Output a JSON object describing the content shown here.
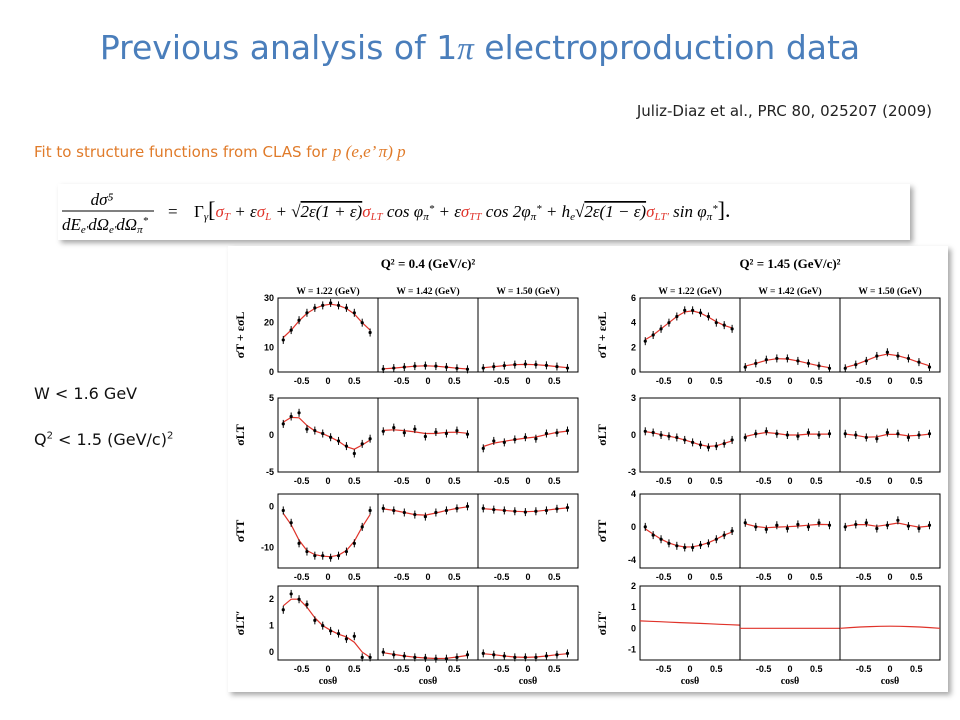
{
  "slide": {
    "title_pre": "Previous analysis of 1",
    "title_pi": "π",
    "title_post": " electroproduction data",
    "citation": "Juliz-Diaz et al., PRC 80, 025207 (2009)",
    "fit_text": "Fit to structure functions from CLAS for",
    "fit_process": "p (e,e’ π) p",
    "cut_w": "W < 1.6 GeV",
    "cut_q2_pre": "Q",
    "cut_q2_sup": "2",
    "cut_q2_mid": " < 1.5 (GeV/c)",
    "cut_q2_sup2": "2"
  },
  "formula": {
    "lhs_num": "dσ⁵",
    "lhs_den": "dE",
    "lhs_den_sub1": "e′",
    "lhs_den_mid": "dΩ",
    "lhs_den_sub2": "e′",
    "lhs_den_end": "dΩ",
    "lhs_den_sub3": "π",
    "lhs_den_star": "*",
    "eq": "=",
    "gamma": "Γ",
    "gamma_sub": "γ",
    "bracket_open": "[",
    "sigma_T": "σ",
    "sigma_T_sub": "T",
    "plus1": " + ε",
    "sigma_L": "σ",
    "sigma_L_sub": "L",
    "plus2": " + ",
    "sqrt1": "√",
    "sqrt1_body": "2ε(1 + ε)",
    "sigma_LT": "σ",
    "sigma_LT_sub": "LT",
    "cos1": " cos φ",
    "phi_sub": "π",
    "phi_star": "*",
    "plus3": " + ε",
    "sigma_TT": "σ",
    "sigma_TT_sub": "TT",
    "cos2": " cos 2φ",
    "plus4": " + h",
    "h_sub": "e",
    "sqrt2": "√",
    "sqrt2_body": "2ε(1 − ε)",
    "sigma_LTp": "σ",
    "sigma_LTp_sub": "LT′",
    "sin": " sin φ",
    "bracket_close": "].",
    "sigma_color": "#e0332a"
  },
  "figure": {
    "group_titles": [
      "Q² = 0.4 (GeV/c)²",
      "Q² = 1.45 (GeV/c)²"
    ],
    "w_labels": [
      "W = 1.22 (GeV)",
      "W = 1.42 (GeV)",
      "W = 1.50 (GeV)"
    ],
    "x_ticks": [
      "-0.5",
      "0",
      "0.5"
    ],
    "x_title": "cosθ",
    "row_labels": [
      "σT + εσL",
      "σLT",
      "σTT",
      "σLT′"
    ],
    "y_ticks_left": [
      [
        "0",
        "10",
        "20",
        "30"
      ],
      [
        "-5",
        "0",
        "5"
      ],
      [
        "-10",
        "0"
      ],
      [
        "0",
        "1",
        "2"
      ]
    ],
    "y_ticks_right": [
      [
        "0",
        "2",
        "4",
        "6"
      ],
      [
        "-3",
        "0",
        "3"
      ],
      [
        "-4",
        "0",
        "4"
      ],
      [
        "-1",
        "0",
        "1",
        "2"
      ]
    ],
    "curve_color": "#e0332a"
  },
  "chart_data": {
    "type": "scatter",
    "xlabel": "cosθ",
    "xlim": [
      -0.95,
      0.95
    ],
    "groups": [
      {
        "title": "Q² = 0.4 (GeV/c)²",
        "rows": [
          {
            "label": "σT + εσL",
            "ylim": [
              0,
              30
            ],
            "yticks": [
              0,
              10,
              20,
              30
            ],
            "panels": [
              {
                "w": "W = 1.22 (GeV)",
                "x": [
                  -0.85,
                  -0.7,
                  -0.55,
                  -0.4,
                  -0.25,
                  -0.1,
                  0.05,
                  0.2,
                  0.35,
                  0.5,
                  0.65,
                  0.8
                ],
                "y": [
                  13,
                  17,
                  21,
                  24,
                  26,
                  27,
                  28,
                  27,
                  26,
                  24,
                  20,
                  16
                ]
              },
              {
                "w": "W = 1.42 (GeV)",
                "x": [
                  -0.85,
                  -0.65,
                  -0.45,
                  -0.25,
                  -0.05,
                  0.15,
                  0.35,
                  0.55,
                  0.75
                ],
                "y": [
                  1.2,
                  1.6,
                  2,
                  2.4,
                  2.6,
                  2.4,
                  2,
                  1.5,
                  1.1
                ]
              },
              {
                "w": "W = 1.50 (GeV)",
                "x": [
                  -0.85,
                  -0.65,
                  -0.45,
                  -0.25,
                  -0.05,
                  0.15,
                  0.35,
                  0.55,
                  0.75
                ],
                "y": [
                  1.6,
                  2.2,
                  2.6,
                  3,
                  3.2,
                  3,
                  2.7,
                  2.2,
                  1.6
                ]
              }
            ]
          },
          {
            "label": "σLT",
            "ylim": [
              -5,
              5
            ],
            "yticks": [
              -5,
              0,
              5
            ],
            "panels": [
              {
                "w": "W = 1.22 (GeV)",
                "x": [
                  -0.85,
                  -0.7,
                  -0.55,
                  -0.4,
                  -0.25,
                  -0.1,
                  0.05,
                  0.2,
                  0.35,
                  0.5,
                  0.65,
                  0.8
                ],
                "y": [
                  1.5,
                  2.5,
                  3,
                  0.8,
                  0.6,
                  0.2,
                  -0.3,
                  -0.8,
                  -1.5,
                  -2.5,
                  -1.2,
                  -0.5
                ]
              },
              {
                "w": "W = 1.42 (GeV)",
                "x": [
                  -0.85,
                  -0.65,
                  -0.45,
                  -0.25,
                  -0.05,
                  0.15,
                  0.35,
                  0.55,
                  0.75
                ],
                "y": [
                  0.5,
                  1,
                  0.3,
                  0.8,
                  -0.2,
                  0.4,
                  0.2,
                  0.6,
                  0.1
                ]
              },
              {
                "w": "W = 1.50 (GeV)",
                "x": [
                  -0.85,
                  -0.65,
                  -0.45,
                  -0.25,
                  -0.05,
                  0.15,
                  0.35,
                  0.55,
                  0.75
                ],
                "y": [
                  -1.8,
                  -0.8,
                  -1,
                  -0.6,
                  -0.3,
                  -0.5,
                  0.2,
                  0.3,
                  0.6
                ]
              }
            ]
          },
          {
            "label": "σTT",
            "ylim": [
              -15,
              3
            ],
            "yticks": [
              -10,
              0
            ],
            "panels": [
              {
                "w": "W = 1.22 (GeV)",
                "x": [
                  -0.85,
                  -0.7,
                  -0.55,
                  -0.4,
                  -0.25,
                  -0.1,
                  0.05,
                  0.2,
                  0.35,
                  0.5,
                  0.65,
                  0.8
                ],
                "y": [
                  -1,
                  -4,
                  -9,
                  -11,
                  -12,
                  -12,
                  -12.5,
                  -12,
                  -11,
                  -9,
                  -5,
                  -1
                ]
              },
              {
                "w": "W = 1.42 (GeV)",
                "x": [
                  -0.85,
                  -0.65,
                  -0.45,
                  -0.25,
                  -0.05,
                  0.15,
                  0.35,
                  0.55,
                  0.75
                ],
                "y": [
                  -0.5,
                  -1,
                  -1.5,
                  -2,
                  -2.5,
                  -1.5,
                  -1,
                  -0.5,
                  0
                ]
              },
              {
                "w": "W = 1.50 (GeV)",
                "x": [
                  -0.85,
                  -0.65,
                  -0.45,
                  -0.25,
                  -0.05,
                  0.15,
                  0.35,
                  0.55,
                  0.75
                ],
                "y": [
                  -0.5,
                  -0.8,
                  -1,
                  -1.2,
                  -1.4,
                  -1.2,
                  -1,
                  -0.6,
                  -0.3
                ]
              }
            ]
          },
          {
            "label": "σLT′",
            "ylim": [
              -0.3,
              2.5
            ],
            "yticks": [
              0,
              1,
              2
            ],
            "panels": [
              {
                "w": "W = 1.22 (GeV)",
                "x": [
                  -0.85,
                  -0.7,
                  -0.55,
                  -0.4,
                  -0.25,
                  -0.1,
                  0.05,
                  0.2,
                  0.35,
                  0.5,
                  0.65,
                  0.8
                ],
                "y": [
                  1.6,
                  2.2,
                  2,
                  1.8,
                  1.2,
                  1,
                  0.8,
                  0.7,
                  0.5,
                  0.6,
                  -0.2,
                  -0.2
                ]
              },
              {
                "w": "W = 1.42 (GeV)",
                "x": [
                  -0.85,
                  -0.65,
                  -0.45,
                  -0.25,
                  -0.05,
                  0.15,
                  0.35,
                  0.55,
                  0.75
                ],
                "y": [
                  0,
                  -0.1,
                  -0.15,
                  -0.2,
                  -0.22,
                  -0.25,
                  -0.25,
                  -0.2,
                  -0.1
                ]
              },
              {
                "w": "W = 1.50 (GeV)",
                "x": [
                  -0.85,
                  -0.65,
                  -0.45,
                  -0.25,
                  -0.05,
                  0.15,
                  0.35,
                  0.55,
                  0.75
                ],
                "y": [
                  -0.05,
                  -0.1,
                  -0.15,
                  -0.2,
                  -0.2,
                  -0.2,
                  -0.15,
                  -0.1,
                  -0.05
                ]
              }
            ]
          }
        ]
      },
      {
        "title": "Q² = 1.45 (GeV/c)²",
        "rows": [
          {
            "label": "σT + εσL",
            "ylim": [
              0,
              6
            ],
            "yticks": [
              0,
              2,
              4,
              6
            ],
            "panels": [
              {
                "w": "W = 1.22 (GeV)",
                "x": [
                  -0.85,
                  -0.7,
                  -0.55,
                  -0.4,
                  -0.25,
                  -0.1,
                  0.05,
                  0.2,
                  0.35,
                  0.5,
                  0.65,
                  0.8
                ],
                "y": [
                  2.5,
                  3,
                  3.5,
                  4,
                  4.5,
                  5,
                  5,
                  4.8,
                  4.5,
                  4,
                  3.8,
                  3.5
                ]
              },
              {
                "w": "W = 1.42 (GeV)",
                "x": [
                  -0.85,
                  -0.65,
                  -0.45,
                  -0.25,
                  -0.05,
                  0.15,
                  0.35,
                  0.55,
                  0.75
                ],
                "y": [
                  0.4,
                  0.7,
                  1,
                  1.1,
                  1.1,
                  0.9,
                  0.7,
                  0.5,
                  0.3
                ]
              },
              {
                "w": "W = 1.50 (GeV)",
                "x": [
                  -0.85,
                  -0.65,
                  -0.45,
                  -0.25,
                  -0.05,
                  0.15,
                  0.35,
                  0.55,
                  0.75
                ],
                "y": [
                  0.3,
                  0.6,
                  0.9,
                  1.3,
                  1.6,
                  1.3,
                  1.1,
                  0.8,
                  0.4
                ]
              }
            ]
          },
          {
            "label": "σLT",
            "ylim": [
              -3,
              3
            ],
            "yticks": [
              -3,
              0,
              3
            ],
            "panels": [
              {
                "w": "W = 1.22 (GeV)",
                "x": [
                  -0.85,
                  -0.7,
                  -0.55,
                  -0.4,
                  -0.25,
                  -0.1,
                  0.05,
                  0.2,
                  0.35,
                  0.5,
                  0.65,
                  0.8
                ],
                "y": [
                  0.3,
                  0.2,
                  0,
                  -0.1,
                  -0.2,
                  -0.4,
                  -0.6,
                  -0.8,
                  -1,
                  -0.9,
                  -0.7,
                  -0.4
                ]
              },
              {
                "w": "W = 1.42 (GeV)",
                "x": [
                  -0.85,
                  -0.65,
                  -0.45,
                  -0.25,
                  -0.05,
                  0.15,
                  0.35,
                  0.55,
                  0.75
                ],
                "y": [
                  -0.2,
                  0.1,
                  0.3,
                  0.1,
                  0,
                  -0.1,
                  0.2,
                  0,
                  0.1
                ]
              },
              {
                "w": "W = 1.50 (GeV)",
                "x": [
                  -0.85,
                  -0.65,
                  -0.45,
                  -0.25,
                  -0.05,
                  0.15,
                  0.35,
                  0.55,
                  0.75
                ],
                "y": [
                  0.1,
                  0,
                  -0.2,
                  -0.3,
                  0.2,
                  0.1,
                  -0.2,
                  0,
                  0.1
                ]
              }
            ]
          },
          {
            "label": "σTT",
            "ylim": [
              -5,
              4
            ],
            "yticks": [
              -4,
              0,
              4
            ],
            "panels": [
              {
                "w": "W = 1.22 (GeV)",
                "x": [
                  -0.85,
                  -0.7,
                  -0.55,
                  -0.4,
                  -0.25,
                  -0.1,
                  0.05,
                  0.2,
                  0.35,
                  0.5,
                  0.65,
                  0.8
                ],
                "y": [
                  0,
                  -1,
                  -1.5,
                  -2,
                  -2.3,
                  -2.5,
                  -2.5,
                  -2.2,
                  -2,
                  -1.5,
                  -1,
                  -0.5
                ]
              },
              {
                "w": "W = 1.42 (GeV)",
                "x": [
                  -0.85,
                  -0.65,
                  -0.45,
                  -0.25,
                  -0.05,
                  0.15,
                  0.35,
                  0.55,
                  0.75
                ],
                "y": [
                  0.5,
                  0,
                  -0.3,
                  0.2,
                  -0.2,
                  0.3,
                  0,
                  0.5,
                  0.2
                ]
              },
              {
                "w": "W = 1.50 (GeV)",
                "x": [
                  -0.85,
                  -0.65,
                  -0.45,
                  -0.25,
                  -0.05,
                  0.15,
                  0.35,
                  0.55,
                  0.75
                ],
                "y": [
                  0,
                  0.3,
                  0.5,
                  -0.2,
                  0.2,
                  0.8,
                  0.1,
                  -0.2,
                  0.2
                ]
              }
            ]
          },
          {
            "label": "σLT′",
            "ylim": [
              -1.5,
              2
            ],
            "yticks": [
              -1,
              0,
              1,
              2
            ],
            "panels": [
              {
                "w": "W = 1.22 (GeV)",
                "x": [],
                "y": []
              },
              {
                "w": "W = 1.42 (GeV)",
                "x": [],
                "y": []
              },
              {
                "w": "W = 1.50 (GeV)",
                "x": [],
                "y": []
              }
            ]
          }
        ]
      }
    ]
  }
}
